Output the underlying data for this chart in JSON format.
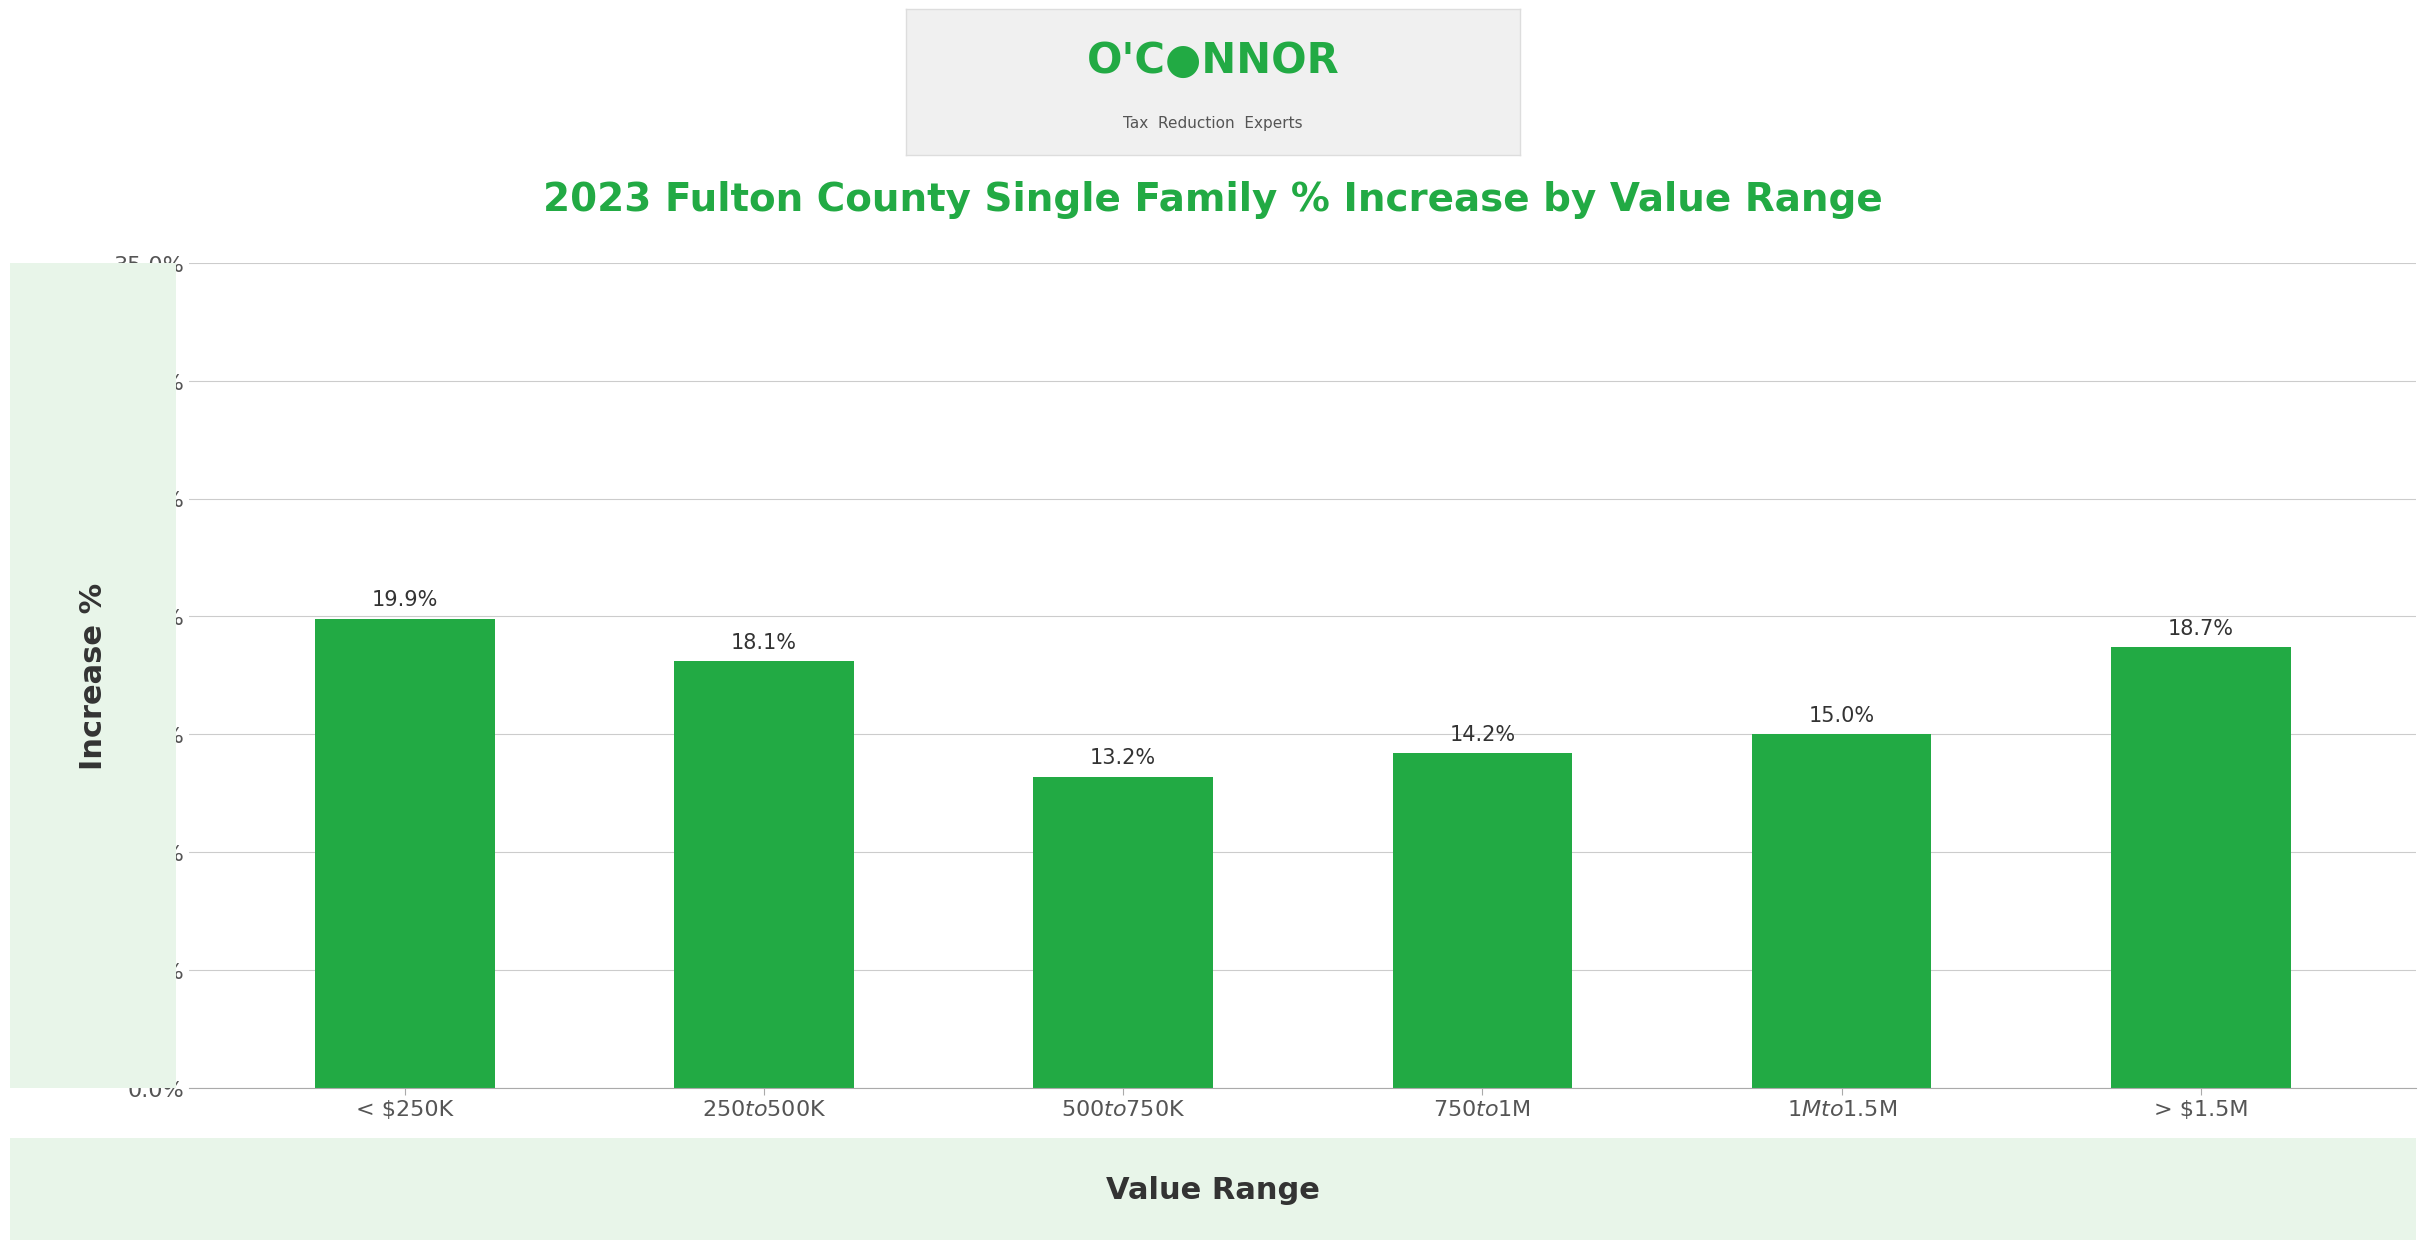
{
  "title": "2023 Fulton County Single Family % Increase by Value Range",
  "xlabel": "Value Range",
  "ylabel": "Increase %",
  "categories": [
    "< $250K",
    "$250 to $500K",
    "$500 to $750K",
    "$750 to $1M",
    "$1M to $1.5M",
    "> $1.5M"
  ],
  "values": [
    19.9,
    18.1,
    13.2,
    14.2,
    15.0,
    18.7
  ],
  "bar_color": "#22aa44",
  "title_color": "#22aa44",
  "ylabel_color": "#333333",
  "xlabel_color": "#333333",
  "background_color": "#ffffff",
  "left_panel_color": "#e8f5e9",
  "bottom_panel_color": "#e8f5e9",
  "ylim": [
    0,
    35
  ],
  "yticks": [
    0,
    5,
    10,
    15,
    20,
    25,
    30,
    35
  ],
  "ytick_labels": [
    "0.0%",
    "5.0%",
    "10.0%",
    "15.0%",
    "20.0%",
    "25.0%",
    "30.0%",
    "35.0%"
  ],
  "title_fontsize": 28,
  "xlabel_fontsize": 22,
  "ylabel_fontsize": 22,
  "tick_fontsize": 16,
  "label_fontsize": 15,
  "grid_color": "#cccccc",
  "logo_text_main": "O'C●NNOR",
  "logo_text_sub": "Tax  Reduction  Experts"
}
